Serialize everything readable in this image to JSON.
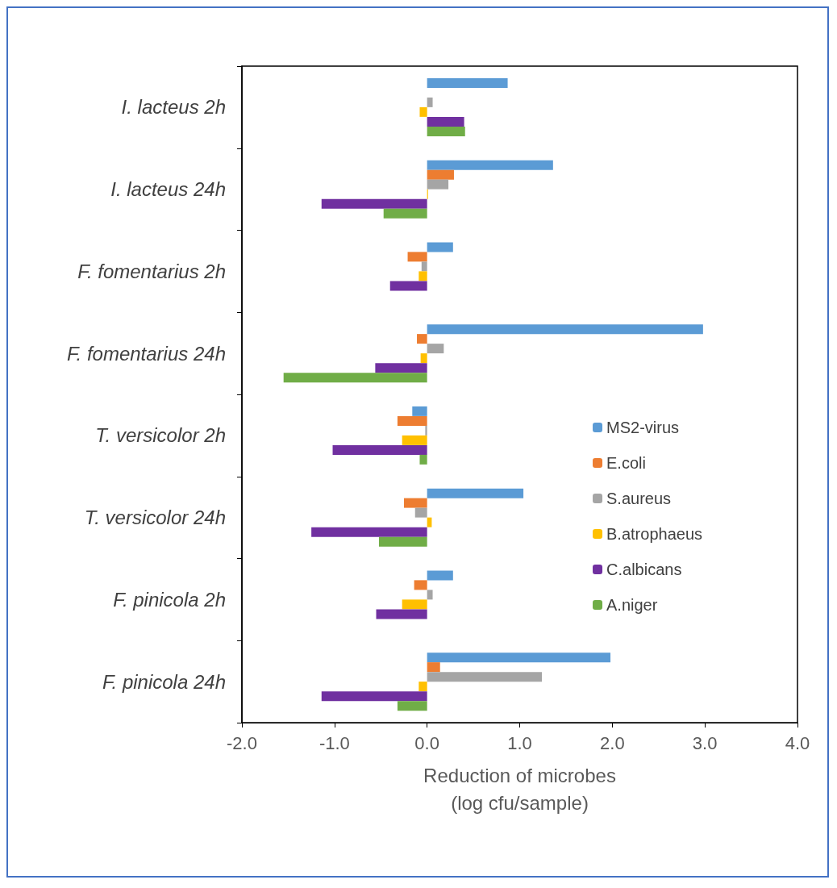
{
  "chart_data": {
    "type": "bar",
    "orientation": "horizontal",
    "xlabel": "Reduction of microbes\n(log cfu/sample)",
    "categories": [
      "I. lacteus 2h",
      "I. lacteus 24h",
      "F. fomentarius 2h",
      "F. fomentarius 24h",
      "T. versicolor 2h",
      "T. versicolor 24h",
      "F. pinicola 2h",
      "F. pinicola 24h"
    ],
    "series": [
      {
        "name": "MS2-virus",
        "color": "#5b9bd5",
        "values": [
          0.87,
          1.36,
          0.28,
          2.98,
          -0.16,
          1.04,
          0.28,
          1.98
        ]
      },
      {
        "name": "E.coli",
        "color": "#ed7d31",
        "values": [
          0,
          0.29,
          -0.21,
          -0.11,
          -0.32,
          -0.25,
          -0.14,
          0.14
        ]
      },
      {
        "name": "S.aureus",
        "color": "#a5a5a5",
        "values": [
          0.06,
          0.23,
          -0.06,
          0.18,
          -0.02,
          -0.13,
          0.06,
          1.24
        ]
      },
      {
        "name": "B.atrophaeus",
        "color": "#ffc000",
        "values": [
          -0.08,
          0.01,
          -0.09,
          -0.07,
          -0.27,
          0.05,
          -0.27,
          -0.09
        ]
      },
      {
        "name": "C.albicans",
        "color": "#7030a0",
        "values": [
          0.4,
          -1.14,
          -0.4,
          -0.56,
          -1.02,
          -1.25,
          -0.55,
          -1.14
        ]
      },
      {
        "name": "A.niger",
        "color": "#70ad47",
        "values": [
          0.41,
          -0.47,
          0,
          -1.55,
          -0.08,
          -0.52,
          0,
          -0.32
        ]
      }
    ],
    "xlim": [
      -2,
      4
    ],
    "xticks": [
      {
        "value": -2,
        "label": "-2.0"
      },
      {
        "value": -1,
        "label": "-1.0"
      },
      {
        "value": 0,
        "label": "0.0"
      },
      {
        "value": 1,
        "label": "1.0"
      },
      {
        "value": 2,
        "label": "2.0"
      },
      {
        "value": 3,
        "label": "3.0"
      },
      {
        "value": 4,
        "label": "4.0"
      }
    ],
    "grid": false,
    "legend": "right"
  }
}
